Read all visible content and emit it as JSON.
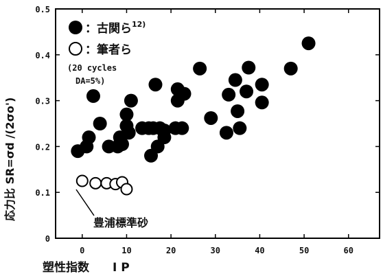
{
  "chart_data": {
    "type": "scatter",
    "xlabel": "塑性指数　　I P",
    "ylabel": "応力比 SR=σd /(2σo')",
    "xlim": [
      -6,
      67
    ],
    "ylim": [
      0,
      0.5
    ],
    "x_ticks": [
      "0",
      "10",
      "20",
      "30",
      "40",
      "50",
      "60"
    ],
    "y_ticks": [
      "0",
      "0.1",
      "0.2",
      "0.3",
      "0.4",
      "0.5"
    ],
    "grid": false,
    "legend": {
      "placement": "top-left",
      "entries": [
        {
          "marker": "filled-circle",
          "text": "：古関ら",
          "sup": "12)"
        },
        {
          "marker": "open-circle",
          "text": "：筆者ら"
        }
      ],
      "note": [
        "(20 cycles",
        "DA=5%)"
      ]
    },
    "annotation": "豊浦標準砂",
    "series": [
      {
        "marker": "filled-circle",
        "color": "#000000",
        "points": [
          [
            -1,
            0.19
          ],
          [
            1,
            0.2
          ],
          [
            1.5,
            0.22
          ],
          [
            2.5,
            0.31
          ],
          [
            4,
            0.25
          ],
          [
            6,
            0.2
          ],
          [
            8,
            0.2
          ],
          [
            8.5,
            0.22
          ],
          [
            9,
            0.205
          ],
          [
            10,
            0.27
          ],
          [
            10,
            0.245
          ],
          [
            10.5,
            0.23
          ],
          [
            11,
            0.3
          ],
          [
            13.5,
            0.24
          ],
          [
            15,
            0.24
          ],
          [
            15.5,
            0.18
          ],
          [
            16,
            0.24
          ],
          [
            16.5,
            0.335
          ],
          [
            17,
            0.2
          ],
          [
            17.5,
            0.24
          ],
          [
            18.5,
            0.235
          ],
          [
            18.5,
            0.22
          ],
          [
            21,
            0.24
          ],
          [
            21.5,
            0.3
          ],
          [
            21.5,
            0.325
          ],
          [
            22.5,
            0.24
          ],
          [
            23,
            0.315
          ],
          [
            26.5,
            0.37
          ],
          [
            29,
            0.262
          ],
          [
            32.5,
            0.23
          ],
          [
            33,
            0.313
          ],
          [
            34.5,
            0.345
          ],
          [
            35,
            0.277
          ],
          [
            35.5,
            0.24
          ],
          [
            37,
            0.32
          ],
          [
            37.5,
            0.372
          ],
          [
            40.5,
            0.335
          ],
          [
            40.5,
            0.296
          ],
          [
            47,
            0.37
          ],
          [
            51,
            0.425
          ]
        ]
      },
      {
        "marker": "open-circle",
        "color": "#000000",
        "points": [
          [
            0,
            0.125
          ],
          [
            3,
            0.12
          ],
          [
            5.5,
            0.12
          ],
          [
            7.5,
            0.118
          ],
          [
            9,
            0.122
          ],
          [
            10,
            0.107
          ]
        ]
      }
    ]
  }
}
